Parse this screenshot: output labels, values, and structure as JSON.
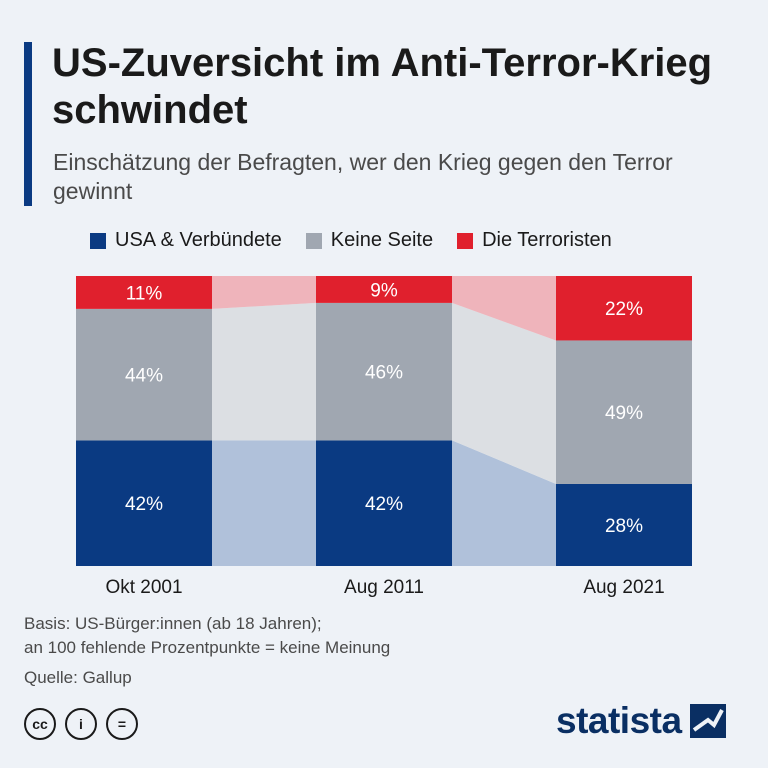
{
  "header": {
    "title": "US-Zuversicht im Anti-Terror-Krieg schwindet",
    "subtitle": "Einschätzung der Befragten, wer den Krieg gegen den Terror gewinnt"
  },
  "chart_data": {
    "type": "bar",
    "stacked": true,
    "categories": [
      "Okt 2001",
      "Aug 2011",
      "Aug 2021"
    ],
    "series": [
      {
        "name": "USA & Verbündete",
        "values": [
          42,
          42,
          28
        ],
        "color": "#0a3a82",
        "band_color": "#b0c1da"
      },
      {
        "name": "Keine Seite",
        "values": [
          44,
          46,
          49
        ],
        "color": "#a0a7b1",
        "band_color": "#dcdfe3"
      },
      {
        "name": "Die Terroristen",
        "values": [
          11,
          9,
          22
        ],
        "color": "#e0202d",
        "band_color": "#efb4bb"
      }
    ],
    "value_suffix": "%",
    "ylim": [
      0,
      100
    ],
    "legend_position": "top",
    "grid": false,
    "xlabel": "",
    "ylabel": ""
  },
  "footer": {
    "note_line1": "Basis: US-Bürger:innen (ab 18 Jahren);",
    "note_line2": "an 100 fehlende Prozentpunkte = keine Meinung",
    "source": "Quelle: Gallup"
  },
  "icons": [
    "cc-icon",
    "by-icon",
    "nd-icon"
  ],
  "cc_labels": [
    "cc",
    "i",
    "="
  ],
  "logo_text": "statista"
}
